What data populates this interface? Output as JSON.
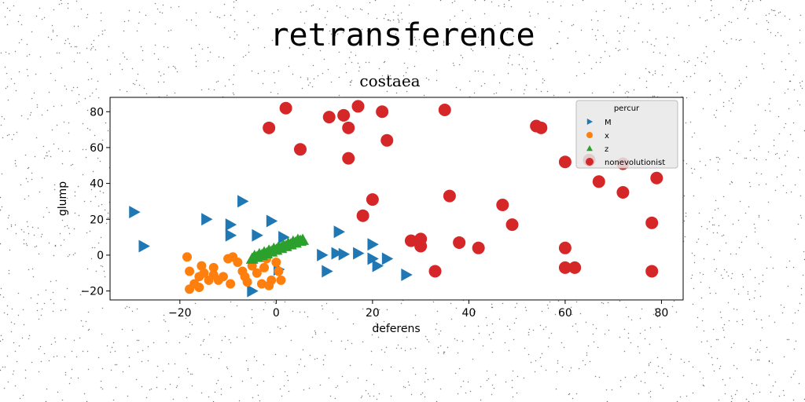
{
  "page": {
    "title": "retransference"
  },
  "chart_data": {
    "type": "scatter",
    "title": "costaea",
    "xlabel": "deferens",
    "ylabel": "glump",
    "xlim": [
      -34.5,
      84.5
    ],
    "ylim": [
      -25,
      88
    ],
    "xticks": [
      -20,
      0,
      20,
      40,
      60,
      80
    ],
    "yticks": [
      -20,
      0,
      20,
      40,
      60,
      80
    ],
    "grid": false,
    "legend": {
      "title": "percur",
      "placement": "top-right"
    },
    "series": [
      {
        "name": "M",
        "marker": "triangle-right",
        "color": "#1f77b4",
        "points": [
          [
            -29.5,
            24
          ],
          [
            -27.5,
            5
          ],
          [
            -14.5,
            20
          ],
          [
            -9.5,
            17
          ],
          [
            -9.5,
            11
          ],
          [
            -7,
            30
          ],
          [
            -4,
            11
          ],
          [
            -1,
            19
          ],
          [
            1.5,
            10
          ],
          [
            13,
            13
          ],
          [
            9.5,
            0
          ],
          [
            12.5,
            1
          ],
          [
            14,
            0.5
          ],
          [
            17,
            1
          ],
          [
            20,
            6
          ],
          [
            20,
            -2
          ],
          [
            21,
            -6
          ],
          [
            23,
            -2
          ],
          [
            27,
            -11
          ],
          [
            10.5,
            -9
          ],
          [
            0.5,
            -8
          ],
          [
            -5,
            -20
          ]
        ]
      },
      {
        "name": "x",
        "marker": "circle",
        "color": "#ff7f0e",
        "points": [
          [
            -18.5,
            -1
          ],
          [
            -18,
            -9
          ],
          [
            -18,
            -19
          ],
          [
            -16,
            -18
          ],
          [
            -15.5,
            -6
          ],
          [
            -15,
            -10
          ],
          [
            -14,
            -14
          ],
          [
            -13,
            -7
          ],
          [
            -12,
            -14
          ],
          [
            -11,
            -12
          ],
          [
            -10,
            -2
          ],
          [
            -9,
            -1
          ],
          [
            -9.5,
            -16
          ],
          [
            -8,
            -4
          ],
          [
            -7,
            -9
          ],
          [
            -6.5,
            -12
          ],
          [
            -5,
            -6
          ],
          [
            -4,
            -10
          ],
          [
            -3,
            -16
          ],
          [
            -2,
            -2
          ],
          [
            -1,
            -14
          ],
          [
            0,
            -4
          ],
          [
            0.5,
            -9
          ],
          [
            -6,
            -15
          ],
          [
            -16,
            -12
          ],
          [
            -17,
            -16
          ],
          [
            -13,
            -11
          ],
          [
            -2.5,
            -7
          ],
          [
            -1.5,
            -17
          ],
          [
            1,
            -14
          ]
        ]
      },
      {
        "name": "z",
        "marker": "triangle-up",
        "color": "#2ca02c",
        "points": [
          [
            -5,
            -2
          ],
          [
            -4,
            -1
          ],
          [
            -3,
            0
          ],
          [
            -2,
            1
          ],
          [
            -1,
            2
          ],
          [
            0,
            3
          ],
          [
            1,
            4
          ],
          [
            2,
            5
          ],
          [
            3,
            6
          ],
          [
            4,
            7
          ],
          [
            5,
            8
          ],
          [
            5.5,
            8.5
          ],
          [
            -4.5,
            -0.5
          ],
          [
            -3.5,
            0.5
          ],
          [
            -2.5,
            1.5
          ],
          [
            -1.5,
            2.5
          ],
          [
            -0.5,
            3.5
          ],
          [
            0.5,
            4.5
          ],
          [
            1.5,
            5.5
          ],
          [
            2.5,
            6.5
          ],
          [
            3.5,
            7.5
          ],
          [
            4.5,
            8.5
          ]
        ]
      },
      {
        "name": "nonevolutionist",
        "marker": "circle",
        "color": "#d62728",
        "points": [
          [
            2,
            82
          ],
          [
            -1.5,
            71
          ],
          [
            5,
            59
          ],
          [
            11,
            77
          ],
          [
            14,
            78
          ],
          [
            15,
            71
          ],
          [
            17,
            83
          ],
          [
            22,
            80
          ],
          [
            23,
            64
          ],
          [
            15,
            54
          ],
          [
            35,
            81
          ],
          [
            36,
            33
          ],
          [
            20,
            31
          ],
          [
            18,
            22
          ],
          [
            47,
            28
          ],
          [
            49,
            17
          ],
          [
            28,
            8
          ],
          [
            30,
            9
          ],
          [
            30,
            5
          ],
          [
            38,
            7
          ],
          [
            42,
            4
          ],
          [
            33,
            -9
          ],
          [
            54,
            72
          ],
          [
            55,
            71
          ],
          [
            60,
            52
          ],
          [
            65,
            53
          ],
          [
            67,
            41
          ],
          [
            72,
            35
          ],
          [
            72,
            51
          ],
          [
            79,
            43
          ],
          [
            78,
            18
          ],
          [
            60,
            4
          ],
          [
            60,
            -7
          ],
          [
            62,
            -7
          ],
          [
            78,
            -9
          ]
        ]
      }
    ]
  }
}
